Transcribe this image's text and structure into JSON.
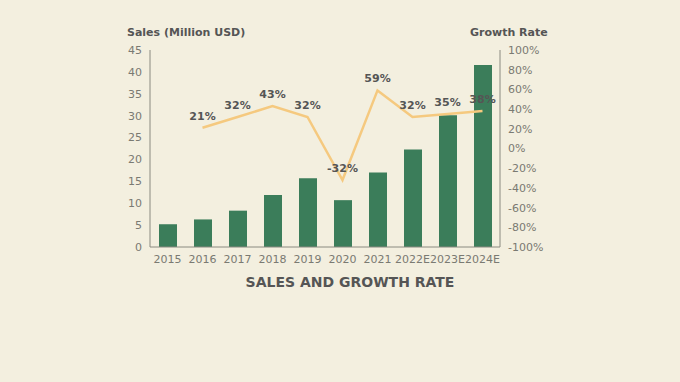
{
  "chart_data": {
    "type": "bar",
    "title": "SALES AND GROWTH RATE",
    "y_label": "Sales (Million USD)",
    "y2_label": "Growth Rate",
    "categories": [
      "2015",
      "2016",
      "2017",
      "2018",
      "2019",
      "2020",
      "2021",
      "2022E",
      "2023E",
      "2024E"
    ],
    "series": [
      {
        "type": "bar",
        "color": "#3b7d5a",
        "values": [
          5.2,
          6.3,
          8.3,
          11.9,
          15.7,
          10.7,
          17,
          22.3,
          30.1,
          41.6
        ]
      },
      {
        "type": "line",
        "axis": "y2",
        "color": "#f5c97f",
        "marker": "none",
        "line_style": "solid",
        "values": [
          null,
          21,
          32,
          43,
          32,
          -32,
          59,
          32,
          35,
          38
        ],
        "value_labels": [
          null,
          "21%",
          "32%",
          "43%",
          "32%",
          "-32%",
          "59%",
          "32%",
          "35%",
          "38%"
        ]
      }
    ],
    "ylim": [
      0,
      45
    ],
    "yticks": [
      0,
      5,
      10,
      15,
      20,
      25,
      30,
      35,
      40,
      45
    ],
    "y2lim": [
      -100,
      100
    ],
    "y2ticks": [
      {
        "value": -100,
        "label": "-100%"
      },
      {
        "value": -80,
        "label": "-80%"
      },
      {
        "value": -60,
        "label": "-60%"
      },
      {
        "value": -40,
        "label": "-40%"
      },
      {
        "value": -20,
        "label": "-20%"
      },
      {
        "value": 0,
        "label": "0%"
      },
      {
        "value": 20,
        "label": "20%"
      },
      {
        "value": 40,
        "label": "40%"
      },
      {
        "value": 60,
        "label": "60%"
      },
      {
        "value": 80,
        "label": "80%"
      },
      {
        "value": 100,
        "label": "100%"
      }
    ],
    "grid": false,
    "data_labels": true
  }
}
